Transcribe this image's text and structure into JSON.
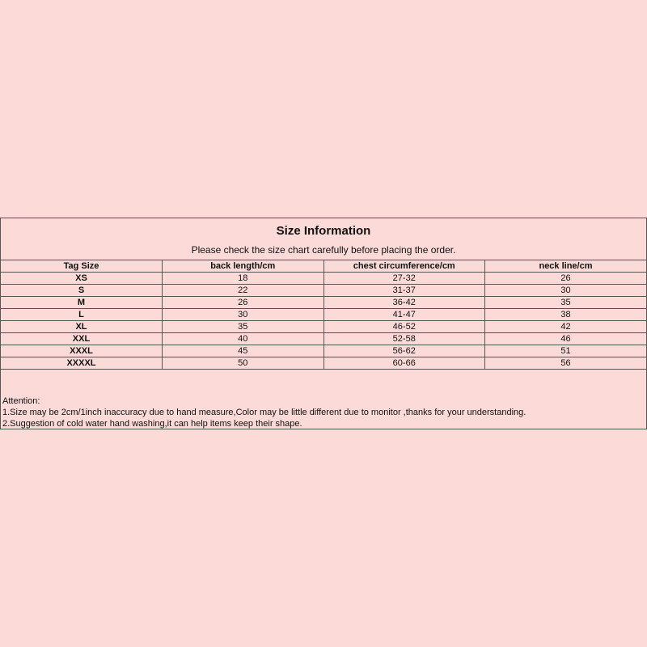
{
  "title": "Size Information",
  "subtitle": "Please check the size chart carefully before placing the order.",
  "table": {
    "headers": [
      "Tag Size",
      "back length/cm",
      "chest circumference/cm",
      "neck line/cm"
    ],
    "rows": [
      [
        "XS",
        "18",
        "27-32",
        "26"
      ],
      [
        "S",
        "22",
        "31-37",
        "30"
      ],
      [
        "M",
        "26",
        "36-42",
        "35"
      ],
      [
        "L",
        "30",
        "41-47",
        "38"
      ],
      [
        "XL",
        "35",
        "46-52",
        "42"
      ],
      [
        "XXL",
        "40",
        "52-58",
        "46"
      ],
      [
        "XXXL",
        "45",
        "56-62",
        "51"
      ],
      [
        "XXXXL",
        "50",
        "60-66",
        "56"
      ]
    ]
  },
  "notes": {
    "heading": "Attention:",
    "items": [
      "1.Size may be 2cm/1inch inaccuracy due to hand measure,Color may be little different due to monitor ,thanks for your understanding.",
      "2.Suggestion of cold water hand washing,it can help items keep their shape."
    ]
  },
  "colors": {
    "background": "#fcdad8",
    "border": "#555555"
  }
}
